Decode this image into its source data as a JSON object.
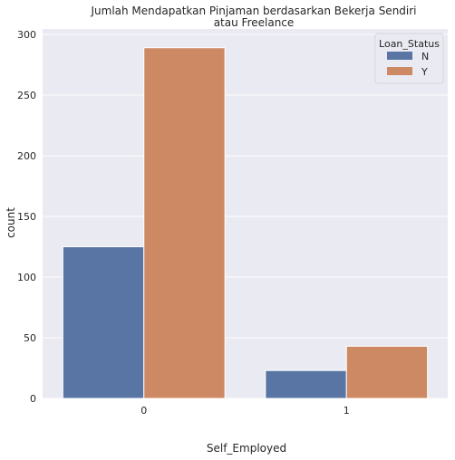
{
  "chart_data": {
    "type": "bar",
    "title_line1": "Jumlah Mendapatkan Pinjaman berdasarkan Bekerja Sendiri",
    "title_line2": "atau Freelance",
    "xlabel": "Self_Employed",
    "ylabel": "count",
    "categories": [
      "0",
      "1"
    ],
    "ylim": [
      0,
      300
    ],
    "yticks": [
      "0",
      "50",
      "100",
      "150",
      "200",
      "250",
      "300"
    ],
    "grid": true,
    "legend": {
      "title": "Loan_Status",
      "position": "top-right"
    },
    "series": [
      {
        "name": "N",
        "color": "#5875a4",
        "values": [
          125,
          23
        ]
      },
      {
        "name": "Y",
        "color": "#cc8963",
        "values": [
          289,
          43
        ]
      }
    ]
  }
}
